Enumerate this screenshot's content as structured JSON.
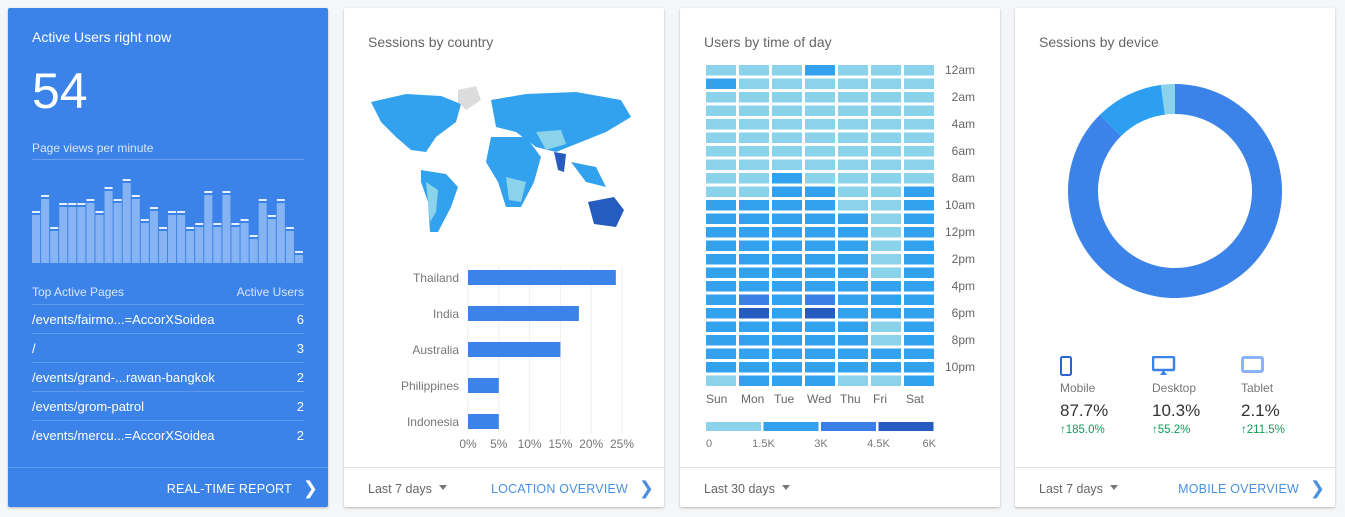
{
  "active": {
    "title": "Active Users right now",
    "count": "54",
    "pvm_label": "Page views per minute",
    "pageviews": [
      12,
      16,
      8,
      14,
      14,
      14,
      15,
      12,
      18,
      15,
      20,
      16,
      10,
      13,
      8,
      12,
      12,
      8,
      9,
      17,
      9,
      17,
      9,
      10,
      6,
      15,
      11,
      15,
      8,
      2
    ],
    "table_header": {
      "page": "Top Active Pages",
      "users": "Active Users"
    },
    "rows": [
      {
        "page": "/events/fairmo...=AccorXSoidea",
        "users": "6"
      },
      {
        "page": "/",
        "users": "3"
      },
      {
        "page": "/events/grand-...rawan-bangkok",
        "users": "2"
      },
      {
        "page": "/events/grom-patrol",
        "users": "2"
      },
      {
        "page": "/events/mercu...=AccorXSoidea",
        "users": "2"
      }
    ],
    "link": "REAL-TIME REPORT"
  },
  "country": {
    "title": "Sessions by country",
    "range": "Last 7 days",
    "link": "LOCATION OVERVIEW",
    "chart_data": {
      "type": "bar",
      "categories": [
        "Thailand",
        "India",
        "Australia",
        "Philippines",
        "Indonesia"
      ],
      "values": [
        24,
        18,
        15,
        5,
        5
      ],
      "ticks": [
        "0%",
        "5%",
        "10%",
        "15%",
        "20%",
        "25%"
      ],
      "xlim": [
        0,
        25
      ]
    }
  },
  "time": {
    "title": "Users by time of day",
    "range": "Last 30 days",
    "hours": [
      "12am",
      "2am",
      "4am",
      "6am",
      "8am",
      "10am",
      "12pm",
      "2pm",
      "4pm",
      "6pm",
      "8pm",
      "10pm"
    ],
    "days": [
      "Sun",
      "Mon",
      "Tue",
      "Wed",
      "Thu",
      "Fri",
      "Sat"
    ],
    "legend": [
      "0",
      "1.5K",
      "3K",
      "4.5K",
      "6K"
    ],
    "colors": [
      "#8ad3ea",
      "#33a2ee",
      "#3a7fe6",
      "#265bbf"
    ],
    "chart_data": {
      "type": "heatmap",
      "levels_note": "bucket index 0-3 per legend",
      "grid": [
        [
          0,
          0,
          0,
          1,
          0,
          0,
          0
        ],
        [
          1,
          0,
          0,
          0,
          0,
          0,
          0
        ],
        [
          0,
          0,
          0,
          0,
          0,
          0,
          0
        ],
        [
          0,
          0,
          0,
          0,
          0,
          0,
          0
        ],
        [
          0,
          0,
          0,
          0,
          0,
          0,
          0
        ],
        [
          0,
          0,
          0,
          0,
          0,
          0,
          0
        ],
        [
          0,
          0,
          0,
          0,
          0,
          0,
          0
        ],
        [
          0,
          0,
          0,
          0,
          0,
          0,
          0
        ],
        [
          0,
          0,
          1,
          0,
          0,
          0,
          0
        ],
        [
          0,
          0,
          1,
          1,
          0,
          0,
          1
        ],
        [
          1,
          1,
          1,
          1,
          0,
          0,
          1
        ],
        [
          1,
          1,
          1,
          1,
          1,
          0,
          1
        ],
        [
          1,
          1,
          1,
          1,
          1,
          0,
          1
        ],
        [
          1,
          1,
          1,
          1,
          1,
          0,
          1
        ],
        [
          1,
          1,
          1,
          1,
          1,
          0,
          1
        ],
        [
          1,
          1,
          1,
          1,
          1,
          0,
          1
        ],
        [
          1,
          1,
          1,
          1,
          1,
          1,
          1
        ],
        [
          1,
          2,
          1,
          2,
          1,
          1,
          1
        ],
        [
          1,
          3,
          1,
          3,
          1,
          1,
          1
        ],
        [
          1,
          1,
          1,
          1,
          1,
          0,
          1
        ],
        [
          1,
          1,
          1,
          1,
          1,
          0,
          1
        ],
        [
          1,
          1,
          1,
          1,
          1,
          1,
          1
        ],
        [
          1,
          1,
          1,
          1,
          1,
          1,
          1
        ],
        [
          0,
          1,
          1,
          1,
          0,
          0,
          1
        ]
      ]
    }
  },
  "device": {
    "title": "Sessions by device",
    "range": "Last 7 days",
    "link": "MOBILE OVERVIEW",
    "chart_data": {
      "type": "pie",
      "labels": [
        "Mobile",
        "Desktop",
        "Tablet"
      ],
      "values": [
        87.7,
        10.3,
        2.1
      ],
      "colors": [
        "#3b83e8",
        "#2d9ff0",
        "#8ad3ea"
      ]
    },
    "items": [
      {
        "label": "Mobile",
        "pct": "87.7%",
        "change": "185.0%"
      },
      {
        "label": "Desktop",
        "pct": "10.3%",
        "change": "55.2%"
      },
      {
        "label": "Tablet",
        "pct": "2.1%",
        "change": "211.5%"
      }
    ]
  }
}
